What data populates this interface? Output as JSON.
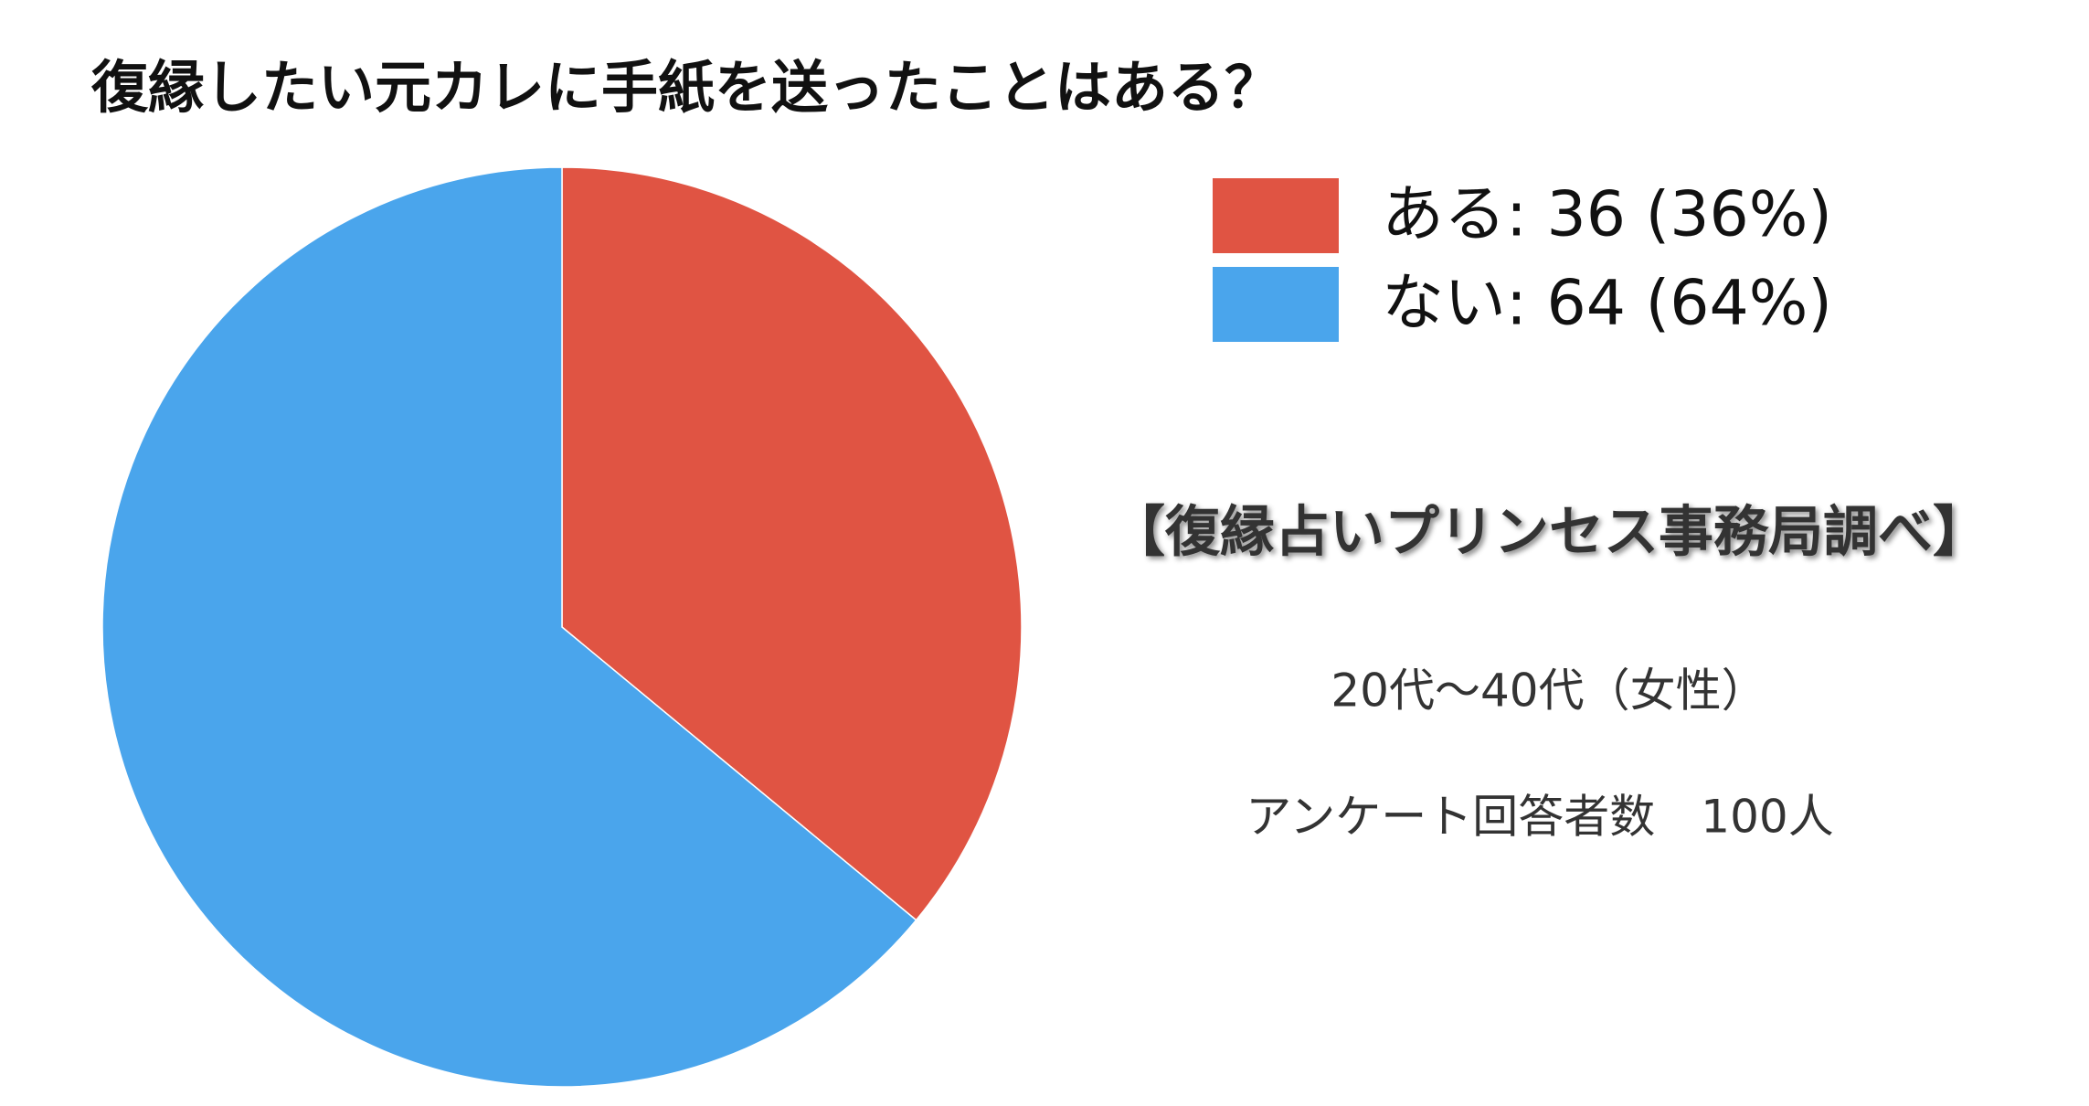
{
  "chart_data": {
    "type": "pie",
    "title": "復縁したい元カレに手紙を送ったことはある？",
    "categories": [
      "ある",
      "ない"
    ],
    "values": [
      36,
      64
    ],
    "labels": [
      "ある: 36 (36%)",
      "ない: 64 (64%)"
    ],
    "colors": [
      "#e05443",
      "#4aa5ec"
    ],
    "annotations": [
      "【復縁占いプリンセス事務局調べ】",
      "20代〜40代（女性）",
      "アンケート回答者数　100人"
    ]
  }
}
